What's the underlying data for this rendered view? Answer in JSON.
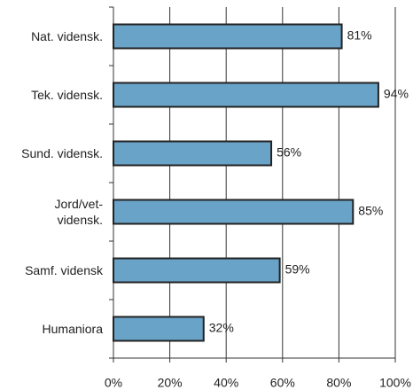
{
  "chart_data": {
    "type": "bar",
    "orientation": "horizontal",
    "categories": [
      "Nat. vidensk.",
      "Tek. vidensk.",
      "Sund. vidensk.",
      "Jord/vet-\nvidensk.",
      "Samf. vidensk",
      "Humaniora"
    ],
    "values": [
      81,
      94,
      56,
      85,
      59,
      32
    ],
    "value_labels": [
      "81%",
      "94%",
      "56%",
      "85%",
      "59%",
      "32%"
    ],
    "color": "#6aa3c8",
    "xlim": [
      0,
      100
    ],
    "xticks": [
      {
        "value": 0,
        "label": "0%"
      },
      {
        "value": 20,
        "label": "20%"
      },
      {
        "value": 40,
        "label": "40%"
      },
      {
        "value": 60,
        "label": "60%"
      },
      {
        "value": 80,
        "label": "80%"
      },
      {
        "value": 100,
        "label": "100%"
      }
    ],
    "grid": true
  }
}
